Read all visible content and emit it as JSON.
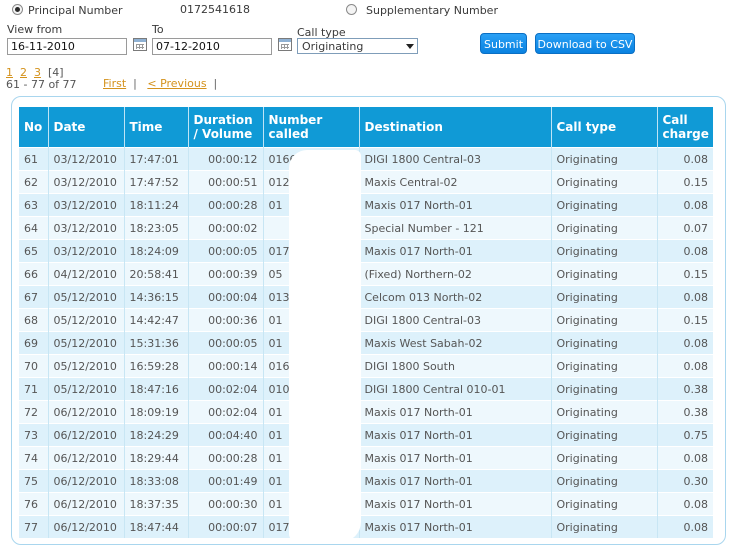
{
  "number_choice": {
    "principal_label": "Principal Number",
    "principal_value": "0172541618",
    "supplementary_label": "Supplementary Number"
  },
  "filters": {
    "view_from_label": "View from",
    "view_from_value": "16-11-2010",
    "to_label": "To",
    "to_value": "07-12-2010",
    "call_type_label": "Call type",
    "call_type_value": "Originating",
    "submit_label": "Submit",
    "download_label": "Download to CSV"
  },
  "pager": {
    "pages": [
      "1",
      "2",
      "3"
    ],
    "current": "[4]",
    "range_text": "61 - 77 of 77",
    "first_label": "First",
    "previous_label": "< Previous"
  },
  "table": {
    "headers": [
      "No",
      "Date",
      "Time",
      "Duration / Volume",
      "Number called",
      "Destination",
      "Call type",
      "Call charge"
    ],
    "rows": [
      {
        "no": "61",
        "date": "03/12/2010",
        "time": "17:47:01",
        "duration": "00:00:12",
        "number": "0166",
        "destination": "DIGI 1800 Central-03",
        "type": "Originating",
        "charge": "0.08"
      },
      {
        "no": "62",
        "date": "03/12/2010",
        "time": "17:47:52",
        "duration": "00:00:51",
        "number": "012",
        "destination": "Maxis Central-02",
        "type": "Originating",
        "charge": "0.15"
      },
      {
        "no": "63",
        "date": "03/12/2010",
        "time": "18:11:24",
        "duration": "00:00:28",
        "number": "01",
        "destination": "Maxis 017 North-01",
        "type": "Originating",
        "charge": "0.08"
      },
      {
        "no": "64",
        "date": "03/12/2010",
        "time": "18:23:05",
        "duration": "00:00:02",
        "number": "",
        "destination": "Special Number - 121",
        "type": "Originating",
        "charge": "0.07"
      },
      {
        "no": "65",
        "date": "03/12/2010",
        "time": "18:24:09",
        "duration": "00:00:05",
        "number": "017",
        "destination": "Maxis 017 North-01",
        "type": "Originating",
        "charge": "0.08"
      },
      {
        "no": "66",
        "date": "04/12/2010",
        "time": "20:58:41",
        "duration": "00:00:39",
        "number": "05",
        "destination": "(Fixed) Northern-02",
        "type": "Originating",
        "charge": "0.15"
      },
      {
        "no": "67",
        "date": "05/12/2010",
        "time": "14:36:15",
        "duration": "00:00:04",
        "number": "013",
        "destination": "Celcom 013 North-02",
        "type": "Originating",
        "charge": "0.08"
      },
      {
        "no": "68",
        "date": "05/12/2010",
        "time": "14:42:47",
        "duration": "00:00:36",
        "number": "01",
        "destination": "DIGI 1800 Central-03",
        "type": "Originating",
        "charge": "0.15"
      },
      {
        "no": "69",
        "date": "05/12/2010",
        "time": "15:31:36",
        "duration": "00:00:05",
        "number": "01",
        "destination": "Maxis West Sabah-02",
        "type": "Originating",
        "charge": "0.08"
      },
      {
        "no": "70",
        "date": "05/12/2010",
        "time": "16:59:28",
        "duration": "00:00:14",
        "number": "016",
        "destination": "DIGI 1800 South",
        "type": "Originating",
        "charge": "0.08"
      },
      {
        "no": "71",
        "date": "05/12/2010",
        "time": "18:47:16",
        "duration": "00:02:04",
        "number": "010",
        "destination": "DIGI 1800 Central 010-01",
        "type": "Originating",
        "charge": "0.38"
      },
      {
        "no": "72",
        "date": "06/12/2010",
        "time": "18:09:19",
        "duration": "00:02:04",
        "number": "01",
        "destination": "Maxis 017 North-01",
        "type": "Originating",
        "charge": "0.38"
      },
      {
        "no": "73",
        "date": "06/12/2010",
        "time": "18:24:29",
        "duration": "00:04:40",
        "number": "01",
        "destination": "Maxis 017 North-01",
        "type": "Originating",
        "charge": "0.75"
      },
      {
        "no": "74",
        "date": "06/12/2010",
        "time": "18:29:44",
        "duration": "00:00:28",
        "number": "01",
        "destination": "Maxis 017 North-01",
        "type": "Originating",
        "charge": "0.08"
      },
      {
        "no": "75",
        "date": "06/12/2010",
        "time": "18:33:08",
        "duration": "00:01:49",
        "number": "01",
        "destination": "Maxis 017 North-01",
        "type": "Originating",
        "charge": "0.30"
      },
      {
        "no": "76",
        "date": "06/12/2010",
        "time": "18:37:35",
        "duration": "00:00:30",
        "number": "01",
        "destination": "Maxis 017 North-01",
        "type": "Originating",
        "charge": "0.08"
      },
      {
        "no": "77",
        "date": "06/12/2010",
        "time": "18:47:44",
        "duration": "00:00:07",
        "number": "017",
        "destination": "Maxis 017 North-01",
        "type": "Originating",
        "charge": "0.08"
      }
    ]
  }
}
